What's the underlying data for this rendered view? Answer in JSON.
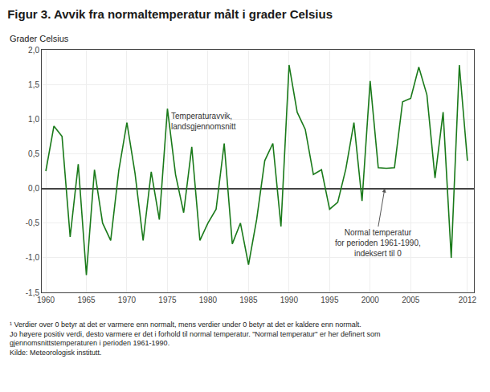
{
  "chart_data": {
    "type": "line",
    "title": "Figur 3. Avvik fra normaltemperatur målt i grader Celsius",
    "ylabel": "Grader Celsius",
    "x": [
      1960,
      1961,
      1962,
      1963,
      1964,
      1965,
      1966,
      1967,
      1968,
      1969,
      1970,
      1971,
      1972,
      1973,
      1974,
      1975,
      1976,
      1977,
      1978,
      1979,
      1980,
      1981,
      1982,
      1983,
      1984,
      1985,
      1986,
      1987,
      1988,
      1989,
      1990,
      1991,
      1992,
      1993,
      1994,
      1995,
      1996,
      1997,
      1998,
      1999,
      2000,
      2001,
      2002,
      2003,
      2004,
      2005,
      2006,
      2007,
      2008,
      2009,
      2010,
      2011,
      2012
    ],
    "values": [
      0.25,
      0.9,
      0.75,
      -0.7,
      0.35,
      -1.25,
      0.27,
      -0.5,
      -0.75,
      0.26,
      0.95,
      0.22,
      -0.75,
      0.24,
      -0.45,
      1.15,
      0.2,
      -0.35,
      0.6,
      -0.75,
      -0.5,
      -0.3,
      0.65,
      -0.8,
      -0.5,
      -1.1,
      -0.45,
      0.4,
      0.65,
      -0.55,
      1.78,
      1.1,
      0.85,
      0.2,
      0.27,
      -0.3,
      -0.2,
      0.28,
      0.95,
      -0.18,
      1.55,
      0.3,
      0.29,
      0.3,
      1.25,
      1.3,
      1.75,
      1.35,
      0.15,
      1.1,
      -1.0,
      1.78,
      0.4
    ],
    "color": "#1a7a1a",
    "xlim": [
      1959.5,
      2012.8
    ],
    "xticks": [
      1960,
      1965,
      1970,
      1975,
      1980,
      1985,
      1990,
      1995,
      2000,
      2005,
      2012
    ],
    "ylim": [
      -1.5,
      2.0
    ],
    "yticks": [
      {
        "value": -1.5,
        "label": "-1,5"
      },
      {
        "value": -1.0,
        "label": "-1,0"
      },
      {
        "value": -0.5,
        "label": "-0,5"
      },
      {
        "value": 0.0,
        "label": "0,0"
      },
      {
        "value": 0.5,
        "label": "0,5"
      },
      {
        "value": 1.0,
        "label": "1,0"
      },
      {
        "value": 1.5,
        "label": "1,5"
      },
      {
        "value": 2.0,
        "label": "2,0"
      }
    ],
    "grid": true,
    "annotations": [
      {
        "text": "Temperaturavvik,\nlandsgjennomsnitt",
        "x": 1975.3,
        "y": 1.13
      },
      {
        "text": "Normal temperatur\nfor perioden 1961-1990,\nindeksert til 0",
        "x": 2001.0,
        "y": -0.55,
        "arrow_x": 2001.8,
        "arrow_y": 0.0
      }
    ],
    "footnote": "¹ Verdier over 0 betyr at det er varmere enn normalt, mens verdier under 0 betyr at det er kaldere enn normalt.\nJo høyere positiv verdi, desto varmere er det i forhold til normal temperatur. \"Normal temperatur\" er her definert som\ngjennomsnittstemperaturen i perioden 1961-1990.\nKilde: Meteorologisk institutt."
  }
}
